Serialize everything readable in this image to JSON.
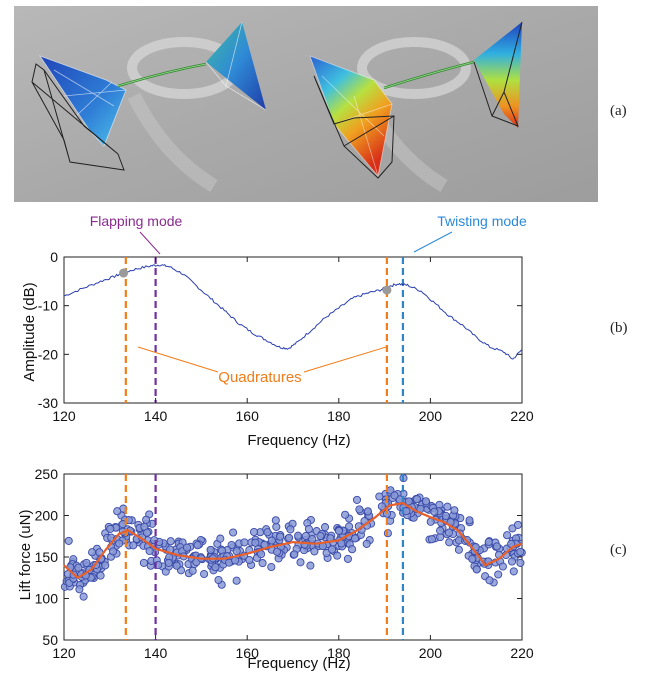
{
  "panel_labels": [
    "(a)",
    "(b)",
    "(c)"
  ],
  "photo": {
    "description_icons": [
      "wing-mesh-left-icon",
      "wing-mesh-right-icon"
    ]
  },
  "annotations": {
    "flapping_mode": "Flapping mode",
    "twisting_mode": "Twisting mode",
    "quadratures": "Quadratures"
  },
  "colors": {
    "orange": "#f07d1a",
    "purple": "#7030a0",
    "blue_dash": "#2e86c8",
    "line_blue": "#2a3fb0",
    "scatter_fill": "#8a9ad6",
    "scatter_edge": "#3a4aa8",
    "fit_line": "#e8602a",
    "flapping_text": "#8a2a90",
    "twisting_text": "#2a8ad8"
  },
  "chart_data": [
    {
      "type": "line",
      "xlabel": "Frequency (Hz)",
      "ylabel": "Amplitude (dB)",
      "xlim": [
        120,
        220
      ],
      "ylim": [
        -30,
        0
      ],
      "xticks": [
        120,
        140,
        160,
        180,
        200,
        220
      ],
      "yticks": [
        0,
        -10,
        -20,
        -30
      ],
      "x": [
        120,
        124,
        128,
        131,
        133,
        136,
        139,
        141,
        143,
        146,
        149,
        152,
        155,
        158,
        161,
        164,
        167,
        169,
        171,
        174,
        177,
        180,
        183,
        186,
        189,
        191,
        193,
        195,
        198,
        201,
        204,
        207,
        210,
        213,
        216,
        218,
        220
      ],
      "y": [
        -8,
        -6.5,
        -5,
        -4,
        -3.2,
        -2.4,
        -1.8,
        -1.6,
        -2,
        -3.5,
        -6,
        -8.5,
        -11,
        -13.5,
        -15.5,
        -17,
        -18.5,
        -18.8,
        -17.5,
        -15,
        -12.5,
        -10.5,
        -8.5,
        -7.5,
        -6.8,
        -6,
        -5.5,
        -5.8,
        -7,
        -9.5,
        -12,
        -14,
        -16.5,
        -18.5,
        -19.5,
        -21,
        -19
      ],
      "markers": [
        {
          "x": 133,
          "y": -3.3
        },
        {
          "x": 190.5,
          "y": -6.8
        }
      ],
      "vlines": [
        {
          "x": 133.5,
          "color": "orange"
        },
        {
          "x": 140,
          "color": "purple"
        },
        {
          "x": 190.5,
          "color": "orange"
        },
        {
          "x": 194,
          "color": "blue_dash"
        }
      ]
    },
    {
      "type": "scatter",
      "xlabel": "Frequency (Hz)",
      "ylabel": "Lift force (uN)",
      "xlim": [
        120,
        220
      ],
      "ylim": [
        50,
        250
      ],
      "xticks": [
        120,
        140,
        160,
        180,
        200,
        220
      ],
      "yticks": [
        250,
        200,
        150,
        100,
        50
      ],
      "fit": {
        "x": [
          120,
          123,
          126,
          129,
          132,
          134,
          137,
          140,
          145,
          150,
          155,
          160,
          165,
          170,
          175,
          180,
          184,
          188,
          191,
          194,
          197,
          200,
          203,
          206,
          209,
          212,
          215,
          218,
          220
        ],
        "y": [
          140,
          125,
          135,
          158,
          178,
          182,
          172,
          160,
          152,
          148,
          148,
          154,
          162,
          168,
          166,
          170,
          182,
          198,
          212,
          215,
          205,
          198,
          192,
          182,
          162,
          140,
          148,
          162,
          166
        ]
      },
      "vlines": [
        {
          "x": 133.5,
          "color": "orange"
        },
        {
          "x": 140,
          "color": "purple"
        },
        {
          "x": 190.5,
          "color": "orange"
        },
        {
          "x": 194,
          "color": "blue_dash"
        }
      ]
    }
  ]
}
